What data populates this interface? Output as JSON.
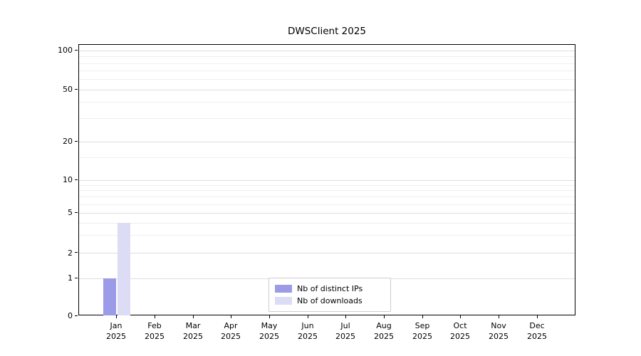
{
  "chart": {
    "title": "DWSClient 2025"
  },
  "chart_data": {
    "type": "bar",
    "title": "DWSClient 2025",
    "categories": [
      "Jan",
      "Feb",
      "Mar",
      "Apr",
      "May",
      "Jun",
      "Jul",
      "Aug",
      "Sep",
      "Oct",
      "Nov",
      "Dec"
    ],
    "category_year": "2025",
    "series": [
      {
        "name": "Nb of distinct IPs",
        "color": "#9b9be8",
        "values": [
          1,
          0,
          0,
          0,
          0,
          0,
          0,
          0,
          0,
          0,
          0,
          0
        ]
      },
      {
        "name": "Nb of downloads",
        "color": "#dcdcf7",
        "values": [
          4,
          0,
          0,
          0,
          0,
          0,
          0,
          0,
          0,
          0,
          0,
          0
        ]
      }
    ],
    "xlabel": "",
    "ylabel": "",
    "yticks": [
      0,
      1,
      2,
      5,
      10,
      20,
      50,
      100
    ],
    "minor_yticks": [
      3,
      4,
      6,
      7,
      8,
      9,
      15,
      30,
      40,
      60,
      70,
      80,
      90
    ],
    "ylim": [
      0,
      110
    ],
    "scale": "quasi-log",
    "grid": true,
    "legend_position": "bottom-center-inside"
  },
  "legend": {
    "items": [
      {
        "label": "Nb of distinct IPs"
      },
      {
        "label": "Nb of downloads"
      }
    ]
  }
}
